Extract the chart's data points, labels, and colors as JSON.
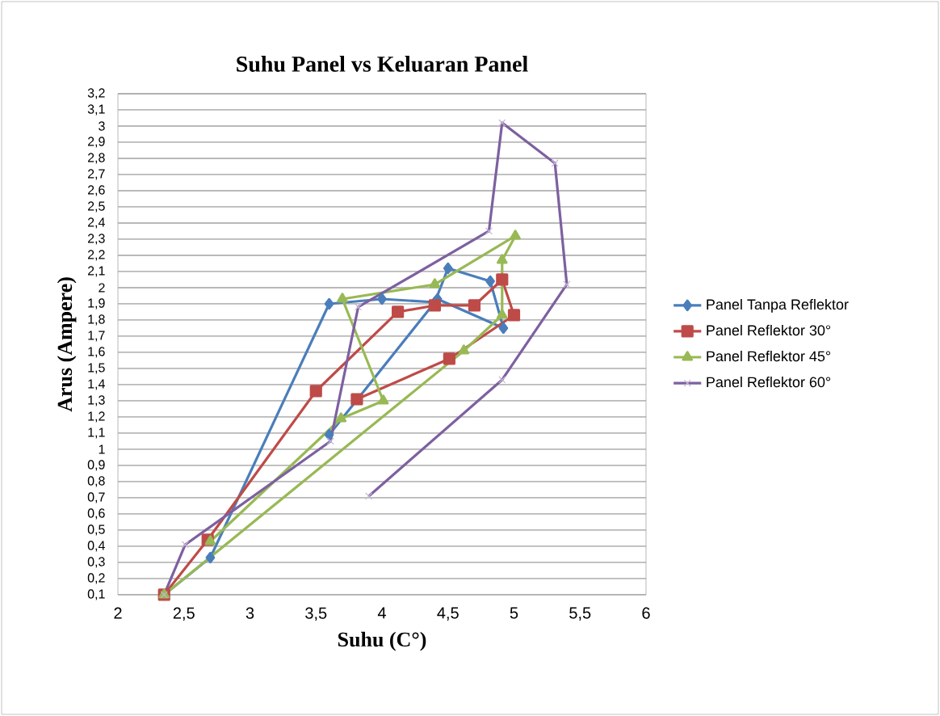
{
  "chart_data": {
    "type": "line",
    "title": "Suhu Panel vs Keluaran Panel",
    "xlabel": "Suhu (C°)",
    "ylabel": "Arus (Ampere)",
    "xlim": [
      2,
      6
    ],
    "xticks": [
      2,
      {
        "value": 2.5,
        "label": "2,5"
      },
      3,
      {
        "value": 3.5,
        "label": "3,5"
      },
      4,
      {
        "value": 4.5,
        "label": "4,5"
      },
      5,
      {
        "value": 5.5,
        "label": "5,5"
      },
      6
    ],
    "ylim": [
      0.1,
      3.2
    ],
    "yticks": [
      {
        "value": 0.1,
        "label": "0,1"
      },
      {
        "value": 0.2,
        "label": "0,2"
      },
      {
        "value": 0.3,
        "label": "0,3"
      },
      {
        "value": 0.4,
        "label": "0,4"
      },
      {
        "value": 0.5,
        "label": "0,5"
      },
      {
        "value": 0.6,
        "label": "0,6"
      },
      {
        "value": 0.7,
        "label": "0,7"
      },
      {
        "value": 0.8,
        "label": "0,8"
      },
      {
        "value": 0.9,
        "label": "0,9"
      },
      1,
      {
        "value": 1.1,
        "label": "1,1"
      },
      {
        "value": 1.2,
        "label": "1,2"
      },
      {
        "value": 1.3,
        "label": "1,3"
      },
      {
        "value": 1.4,
        "label": "1,4"
      },
      {
        "value": 1.5,
        "label": "1,5"
      },
      {
        "value": 1.6,
        "label": "1,6"
      },
      {
        "value": 1.7,
        "label": "1,7"
      },
      {
        "value": 1.8,
        "label": "1,8"
      },
      {
        "value": 1.9,
        "label": "1,9"
      },
      2,
      {
        "value": 2.1,
        "label": "2,1"
      },
      {
        "value": 2.2,
        "label": "2,2"
      },
      {
        "value": 2.3,
        "label": "2,3"
      },
      {
        "value": 2.4,
        "label": "2,4"
      },
      {
        "value": 2.5,
        "label": "2,5"
      },
      {
        "value": 2.6,
        "label": "2,6"
      },
      {
        "value": 2.7,
        "label": "2,7"
      },
      {
        "value": 2.8,
        "label": "2,8"
      },
      {
        "value": 2.9,
        "label": "2,9"
      },
      3,
      {
        "value": 3.1,
        "label": "3,1"
      },
      {
        "value": 3.2,
        "label": "3,2"
      }
    ],
    "grid": "y",
    "legend": "right",
    "series": [
      {
        "name": "Panel Tanpa Reflektor",
        "color": "#4a7ebb",
        "marker": "diamond",
        "x": [
          2.35,
          2.7,
          3.6,
          4.0,
          4.4,
          4.5,
          4.82,
          4.92,
          4.42,
          3.6
        ],
        "values": [
          0.1,
          0.33,
          1.9,
          1.93,
          1.91,
          2.12,
          2.04,
          1.75,
          1.93,
          1.09
        ]
      },
      {
        "name": "Panel Reflektor 30°",
        "color": "#be4b48",
        "marker": "square",
        "x": [
          2.35,
          2.68,
          3.5,
          4.12,
          4.4,
          4.7,
          4.91,
          5.0,
          4.51,
          3.81
        ],
        "values": [
          0.1,
          0.44,
          1.36,
          1.85,
          1.89,
          1.89,
          2.05,
          1.83,
          1.56,
          1.31
        ]
      },
      {
        "name": "Panel Reflektor 45°",
        "color": "#98b954",
        "marker": "triangle",
        "x": [
          2.7,
          3.69,
          4.01,
          3.7,
          4.4,
          5.01,
          4.91,
          4.91,
          4.62,
          2.35
        ],
        "values": [
          0.43,
          1.19,
          1.3,
          1.93,
          2.02,
          2.32,
          2.17,
          1.83,
          1.61,
          0.1
        ]
      },
      {
        "name": "Panel Reflektor 60°",
        "color": "#7d60a0",
        "marker": "cross",
        "x": [
          3.9,
          4.91,
          5.4,
          5.31,
          4.91,
          4.81,
          3.82,
          3.61,
          2.51,
          2.35
        ],
        "values": [
          0.71,
          1.43,
          2.02,
          2.77,
          3.02,
          2.35,
          1.88,
          1.05,
          0.41,
          0.1
        ]
      }
    ]
  }
}
